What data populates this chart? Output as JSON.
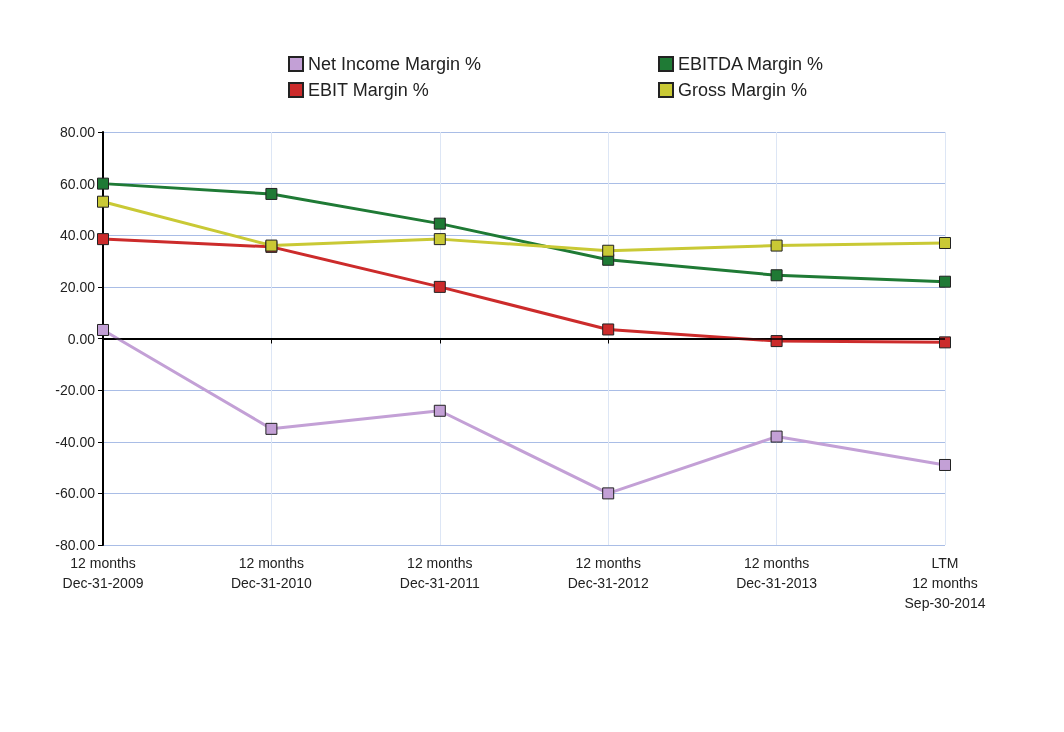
{
  "chart_data": {
    "type": "line",
    "categories": [
      "12 months\nDec-31-2009",
      "12 months\nDec-31-2010",
      "12 months\nDec-31-2011",
      "12 months\nDec-31-2012",
      "12 months\nDec-31-2013",
      "LTM\n12 months\nSep-30-2014"
    ],
    "series": [
      {
        "name": "Net Income Margin %",
        "color": "#c3a0d6",
        "values": [
          3.3,
          -35,
          -28,
          -60,
          -38,
          -49
        ]
      },
      {
        "name": "EBITDA Margin %",
        "color": "#1f7a35",
        "values": [
          60,
          56,
          44.5,
          30.5,
          24.5,
          22
        ]
      },
      {
        "name": "EBIT Margin %",
        "color": "#cc2b2b",
        "values": [
          38.5,
          35.5,
          20,
          3.5,
          -1,
          -1.5
        ]
      },
      {
        "name": "Gross Margin %",
        "color": "#c9c935",
        "values": [
          53,
          36,
          38.5,
          34,
          36,
          37
        ]
      }
    ],
    "ylim": [
      -80,
      80
    ],
    "yticks": [
      {
        "value": -80,
        "label": "-80.00"
      },
      {
        "value": -60,
        "label": "-60.00"
      },
      {
        "value": -40,
        "label": "-40.00"
      },
      {
        "value": -20,
        "label": "-20.00"
      },
      {
        "value": 0,
        "label": "0.00"
      },
      {
        "value": 20,
        "label": "20.00"
      },
      {
        "value": 40,
        "label": "40.00"
      },
      {
        "value": 60,
        "label": "60.00"
      },
      {
        "value": 80,
        "label": "80.00"
      }
    ],
    "ref_lines": [
      {
        "axis": "y",
        "value": 0,
        "color": "#000000"
      }
    ],
    "grid": true,
    "legend": "top",
    "marker": "square",
    "line_style": "solid"
  }
}
